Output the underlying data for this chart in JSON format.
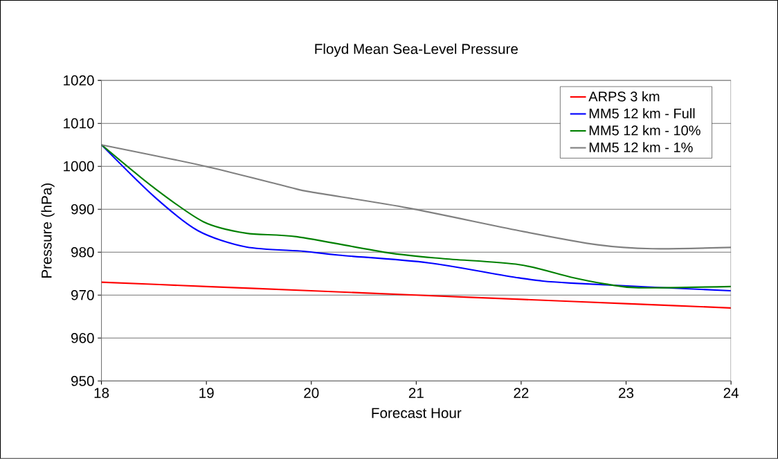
{
  "chart_data": {
    "type": "line",
    "title": "Floyd Mean Sea-Level Pressure",
    "xlabel": "Forecast Hour",
    "ylabel": "Pressure (hPa)",
    "xlim": [
      18,
      24
    ],
    "xticks": [
      18,
      19,
      20,
      21,
      22,
      23,
      24
    ],
    "ylim": [
      950,
      1020
    ],
    "yticks": [
      950,
      960,
      970,
      980,
      990,
      1000,
      1010,
      1020
    ],
    "grid": "y",
    "legend": "top right",
    "marker": "none",
    "line_style": "solid",
    "series": [
      {
        "name": "ARPS 3 km",
        "color": "#ff0000",
        "x": [
          18,
          19,
          20,
          21,
          22,
          23,
          24
        ],
        "values": [
          973,
          972,
          971,
          970,
          969,
          968,
          967
        ]
      },
      {
        "name": "MM5 12 km - Full",
        "color": "#0000ff",
        "x": [
          18,
          18.5,
          18.92,
          19.38,
          19.93,
          20.26,
          21.12,
          21.98,
          22.47,
          24
        ],
        "values": [
          1005,
          993,
          985,
          981.2,
          980.2,
          979.3,
          977.5,
          974,
          972.8,
          971
        ]
      },
      {
        "name": "MM5 12 km - 10%",
        "color": "#008000",
        "x": [
          18,
          18.5,
          18.97,
          19.38,
          19.86,
          20.72,
          21.25,
          21.98,
          22.47,
          22.8,
          23.12,
          24
        ],
        "values": [
          1005,
          995,
          987.1,
          984.4,
          983.6,
          979.9,
          978.5,
          977.1,
          974.2,
          972.6,
          971.7,
          972
        ]
      },
      {
        "name": "MM5 12 km - 1%",
        "color": "#808080",
        "x": [
          18,
          18.99,
          19.78,
          20.0,
          20.92,
          21.98,
          22.73,
          23.25,
          24
        ],
        "values": [
          1005,
          1000,
          995.2,
          994,
          990.3,
          985,
          981.7,
          980.8,
          981.1
        ]
      }
    ]
  }
}
